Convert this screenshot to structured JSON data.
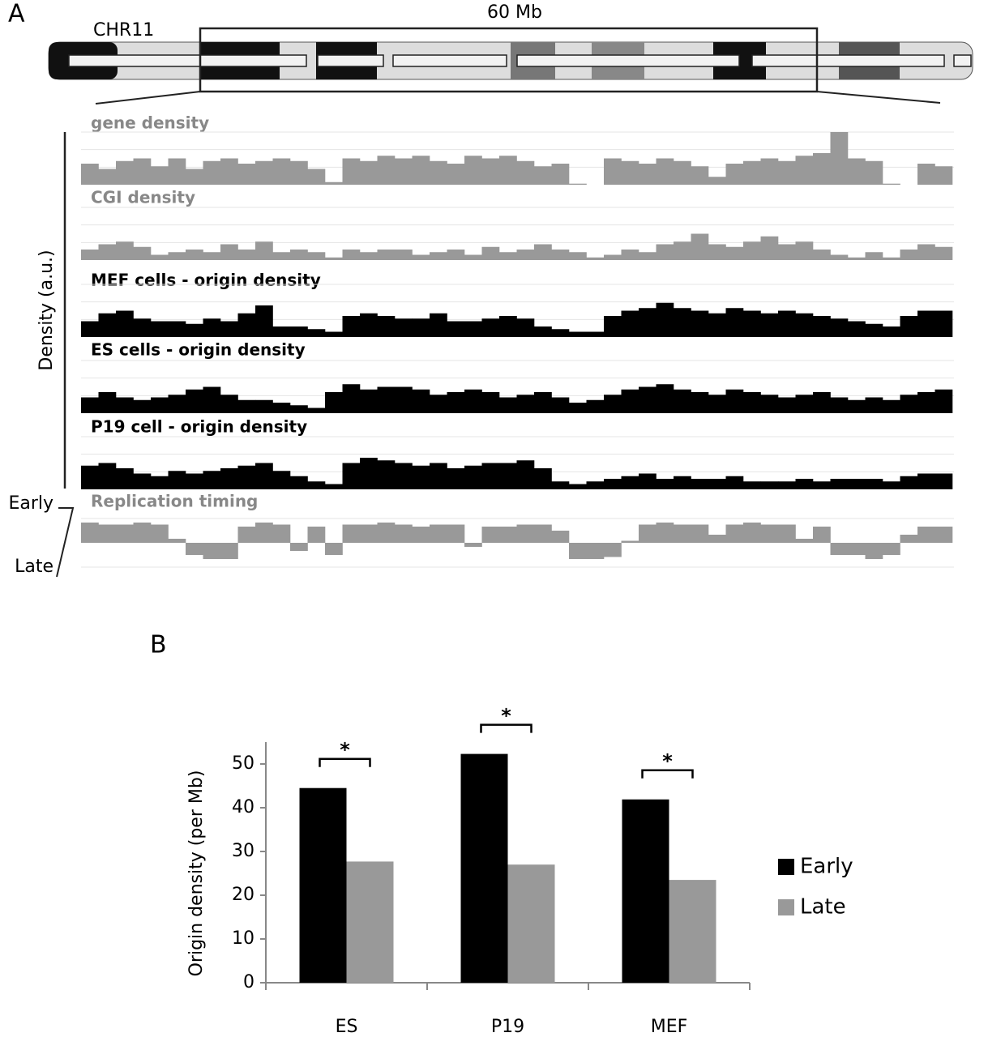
{
  "panel_labels": [
    "A",
    "B"
  ],
  "chromosome": {
    "name": "CHR11",
    "region": "60 Mb"
  },
  "chart_data": [
    {
      "type": "track",
      "y_label": "Density (a.u.)",
      "timing_early": "Early",
      "timing_late": "Late",
      "ylim": [
        0,
        1
      ],
      "tracks": [
        {
          "name": "gene density",
          "color": "#999999",
          "values": [
            0.4,
            0.3,
            0.45,
            0.5,
            0.35,
            0.5,
            0.3,
            0.45,
            0.5,
            0.4,
            0.45,
            0.5,
            0.45,
            0.3,
            0.05,
            0.5,
            0.45,
            0.55,
            0.5,
            0.55,
            0.45,
            0.4,
            0.55,
            0.5,
            0.55,
            0.45,
            0.35,
            0.4,
            0.02,
            0.0,
            0.5,
            0.45,
            0.4,
            0.5,
            0.45,
            0.35,
            0.15,
            0.4,
            0.45,
            0.5,
            0.45,
            0.55,
            0.6,
            1.0,
            0.5,
            0.45,
            0.02,
            0.0,
            0.4,
            0.35
          ]
        },
        {
          "name": "CGI density",
          "color": "#999999",
          "values": [
            0.2,
            0.3,
            0.35,
            0.25,
            0.1,
            0.15,
            0.2,
            0.15,
            0.3,
            0.2,
            0.35,
            0.15,
            0.2,
            0.15,
            0.05,
            0.2,
            0.15,
            0.2,
            0.2,
            0.1,
            0.15,
            0.2,
            0.1,
            0.25,
            0.15,
            0.2,
            0.3,
            0.2,
            0.15,
            0.05,
            0.1,
            0.2,
            0.15,
            0.3,
            0.35,
            0.5,
            0.3,
            0.25,
            0.35,
            0.45,
            0.3,
            0.35,
            0.2,
            0.1,
            0.05,
            0.15,
            0.05,
            0.2,
            0.3,
            0.25
          ]
        },
        {
          "name": "MEF cells - origin density",
          "color": "#000000",
          "values": [
            0.3,
            0.45,
            0.5,
            0.35,
            0.3,
            0.3,
            0.25,
            0.35,
            0.3,
            0.45,
            0.6,
            0.2,
            0.2,
            0.15,
            0.1,
            0.4,
            0.45,
            0.4,
            0.35,
            0.35,
            0.45,
            0.3,
            0.3,
            0.35,
            0.4,
            0.35,
            0.2,
            0.15,
            0.1,
            0.1,
            0.4,
            0.5,
            0.55,
            0.65,
            0.55,
            0.5,
            0.45,
            0.55,
            0.5,
            0.45,
            0.5,
            0.45,
            0.4,
            0.35,
            0.3,
            0.25,
            0.2,
            0.4,
            0.5,
            0.5
          ]
        },
        {
          "name": "ES cells - origin density",
          "color": "#000000",
          "values": [
            0.3,
            0.4,
            0.3,
            0.25,
            0.3,
            0.35,
            0.45,
            0.5,
            0.35,
            0.25,
            0.25,
            0.2,
            0.15,
            0.1,
            0.4,
            0.55,
            0.45,
            0.5,
            0.5,
            0.45,
            0.35,
            0.4,
            0.45,
            0.4,
            0.3,
            0.35,
            0.4,
            0.3,
            0.2,
            0.25,
            0.35,
            0.45,
            0.5,
            0.55,
            0.45,
            0.4,
            0.35,
            0.45,
            0.4,
            0.35,
            0.3,
            0.35,
            0.4,
            0.3,
            0.25,
            0.3,
            0.25,
            0.35,
            0.4,
            0.45
          ]
        },
        {
          "name": "P19 cell - origin density",
          "color": "#000000",
          "values": [
            0.45,
            0.5,
            0.4,
            0.3,
            0.25,
            0.35,
            0.3,
            0.35,
            0.4,
            0.45,
            0.5,
            0.35,
            0.25,
            0.15,
            0.1,
            0.5,
            0.6,
            0.55,
            0.5,
            0.45,
            0.5,
            0.4,
            0.45,
            0.5,
            0.5,
            0.55,
            0.4,
            0.15,
            0.1,
            0.15,
            0.2,
            0.25,
            0.3,
            0.2,
            0.25,
            0.2,
            0.2,
            0.25,
            0.15,
            0.15,
            0.15,
            0.2,
            0.15,
            0.2,
            0.2,
            0.2,
            0.15,
            0.25,
            0.3,
            0.3
          ]
        }
      ],
      "timing": {
        "name": "Replication timing",
        "color": "#999999",
        "ylim": [
          -1,
          1
        ],
        "values": [
          0.5,
          0.45,
          0.45,
          0.5,
          0.45,
          0.1,
          -0.3,
          -0.4,
          -0.4,
          0.4,
          0.5,
          0.45,
          -0.2,
          0.4,
          -0.3,
          0.45,
          0.45,
          0.5,
          0.45,
          0.4,
          0.45,
          0.45,
          -0.1,
          0.4,
          0.4,
          0.45,
          0.45,
          0.3,
          -0.4,
          -0.4,
          -0.35,
          0.05,
          0.45,
          0.5,
          0.45,
          0.45,
          0.2,
          0.45,
          0.5,
          0.45,
          0.45,
          0.1,
          0.4,
          -0.3,
          -0.3,
          -0.4,
          -0.3,
          0.2,
          0.4,
          0.4
        ]
      }
    },
    {
      "type": "bar",
      "y_label": "Origin density (per Mb)",
      "categories": [
        "ES",
        "P19",
        "MEF"
      ],
      "series": [
        {
          "name": "Early",
          "color": "#000000",
          "values": [
            44.5,
            52.3,
            41.9
          ]
        },
        {
          "name": "Late",
          "color": "#999999",
          "values": [
            27.7,
            27.0,
            23.5
          ]
        }
      ],
      "annotations": [
        "*",
        "*",
        "*"
      ],
      "ylim": [
        0,
        55
      ],
      "yticks": [
        0,
        10,
        20,
        30,
        40,
        50
      ]
    }
  ]
}
